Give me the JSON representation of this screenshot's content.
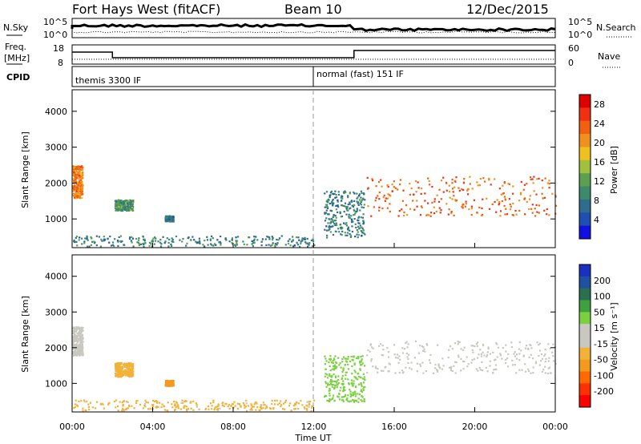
{
  "header": {
    "station": "Fort Hays West (fitACF)",
    "beam": "Beam 10",
    "date": "12/Dec/2015"
  },
  "summary": {
    "nsky_label": "N.Sky",
    "nsearch_label": "N.Search",
    "freq_label_1": "Freq.",
    "freq_label_2": "[MHz]",
    "nave_label": "Nave",
    "cpid_label": "CPID",
    "nsky_ticks": [
      "10^5",
      "10^0"
    ],
    "nsearch_ticks": [
      "10^5",
      "10^0"
    ],
    "freq_ticks": [
      "18",
      "8"
    ],
    "nave_ticks": [
      "60",
      "0"
    ],
    "cpid_1": "themis 3300 IF",
    "cpid_2": "normal (fast) 151 IF"
  },
  "colors": {
    "power_scale": [
      "#1010e0",
      "#1f4fb0",
      "#2f6d8f",
      "#3c8a6a",
      "#5aa050",
      "#a0c040",
      "#f0c020",
      "#f09020",
      "#f06010",
      "#f03010",
      "#e00000"
    ],
    "velocity_scale": [
      "#ff0000",
      "#ff3000",
      "#ff6a00",
      "#f29a1e",
      "#f2b23a",
      "#c8c8c0",
      "#c8c8c0",
      "#7ad040",
      "#3fa040",
      "#2a7050",
      "#2050a0",
      "#1a30c0"
    ]
  },
  "chart_data": [
    {
      "type": "heatmap",
      "name": "power",
      "ylabel": "Slant Range [km]",
      "yticks": [
        1000,
        2000,
        3000,
        4000
      ],
      "ylim": [
        200,
        4600
      ],
      "xlim": [
        0,
        24
      ],
      "colorbar_label": "Power [dB]",
      "colorbar_ticks": [
        4,
        8,
        12,
        16,
        20,
        24,
        28
      ],
      "colorbar_range": [
        0,
        30
      ],
      "features": [
        {
          "t0": 0.0,
          "t1": 0.5,
          "r0": 1600,
          "r1": 2500,
          "level": 22
        },
        {
          "t0": 2.1,
          "t1": 3.0,
          "r0": 1250,
          "r1": 1550,
          "level": 10
        },
        {
          "t0": 4.6,
          "t1": 5.0,
          "r0": 950,
          "r1": 1100,
          "level": 6
        },
        {
          "t0": 0.0,
          "t1": 12.0,
          "r0": 250,
          "r1": 550,
          "level": 8
        },
        {
          "t0": 12.5,
          "t1": 14.5,
          "r0": 500,
          "r1": 1800,
          "level": 8
        },
        {
          "t0": 14.6,
          "t1": 24.0,
          "r0": 1100,
          "r1": 2200,
          "level": 24
        }
      ]
    },
    {
      "type": "heatmap",
      "name": "velocity",
      "xlabel": "Time UT",
      "ylabel": "Slant Range [km]",
      "xticks": [
        "00:00",
        "04:00",
        "08:00",
        "12:00",
        "16:00",
        "20:00",
        "00:00"
      ],
      "yticks": [
        1000,
        2000,
        3000,
        4000
      ],
      "ylim": [
        200,
        4600
      ],
      "xlim": [
        0,
        24
      ],
      "colorbar_label": "Velocity [m s⁻¹]",
      "colorbar_ticks": [
        200,
        100,
        50,
        15,
        -15,
        -50,
        -100,
        -200
      ],
      "features": [
        {
          "t0": 0.0,
          "t1": 0.5,
          "r0": 1800,
          "r1": 2600,
          "level": 0
        },
        {
          "t0": 2.1,
          "t1": 3.0,
          "r0": 1200,
          "r1": 1600,
          "level": -60
        },
        {
          "t0": 4.6,
          "t1": 5.0,
          "r0": 950,
          "r1": 1100,
          "level": -80
        },
        {
          "t0": 0.0,
          "t1": 12.0,
          "r0": 250,
          "r1": 550,
          "level": -40
        },
        {
          "t0": 12.5,
          "t1": 14.5,
          "r0": 500,
          "r1": 1800,
          "level": 60
        },
        {
          "t0": 14.6,
          "t1": 24.0,
          "r0": 1300,
          "r1": 2200,
          "level": 0
        }
      ]
    }
  ]
}
